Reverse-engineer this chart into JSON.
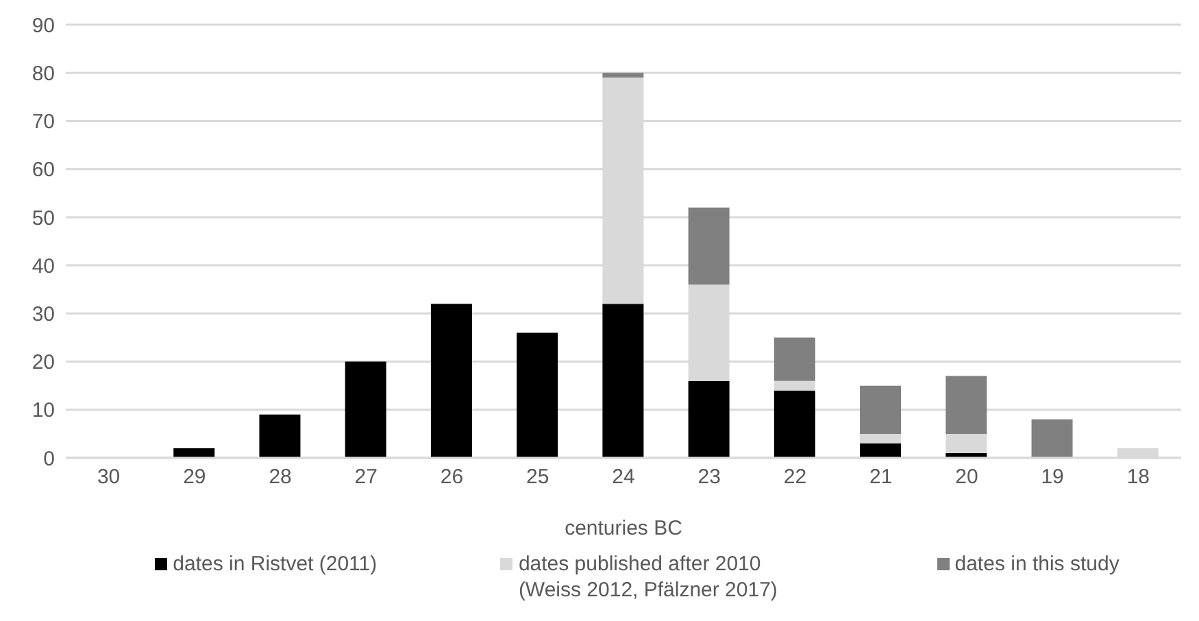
{
  "chart_data": {
    "type": "bar",
    "xlabel": "centuries BC",
    "categories": [
      "30",
      "29",
      "28",
      "27",
      "26",
      "25",
      "24",
      "23",
      "22",
      "21",
      "20",
      "19",
      "18"
    ],
    "stacked": true,
    "series": [
      {
        "name": "dates in Ristvet (2011)",
        "color": "#000000",
        "values": [
          0,
          2,
          9,
          20,
          32,
          26,
          32,
          16,
          14,
          3,
          1,
          0,
          0
        ]
      },
      {
        "name": "dates published after 2010 (Weiss 2012, Pfälzner 2017)",
        "color": "#d9d9d9",
        "values": [
          0,
          0,
          0,
          0,
          0,
          0,
          47,
          20,
          2,
          2,
          4,
          0,
          2
        ]
      },
      {
        "name": "dates in this study",
        "color": "#808080",
        "values": [
          0,
          0,
          0,
          0,
          0,
          0,
          1,
          16,
          9,
          10,
          12,
          8,
          0
        ]
      }
    ],
    "ylim": [
      0,
      90
    ],
    "yticks": [
      0,
      10,
      20,
      30,
      40,
      50,
      60,
      70,
      80,
      90
    ],
    "grid": "y",
    "legend": "bottom"
  }
}
